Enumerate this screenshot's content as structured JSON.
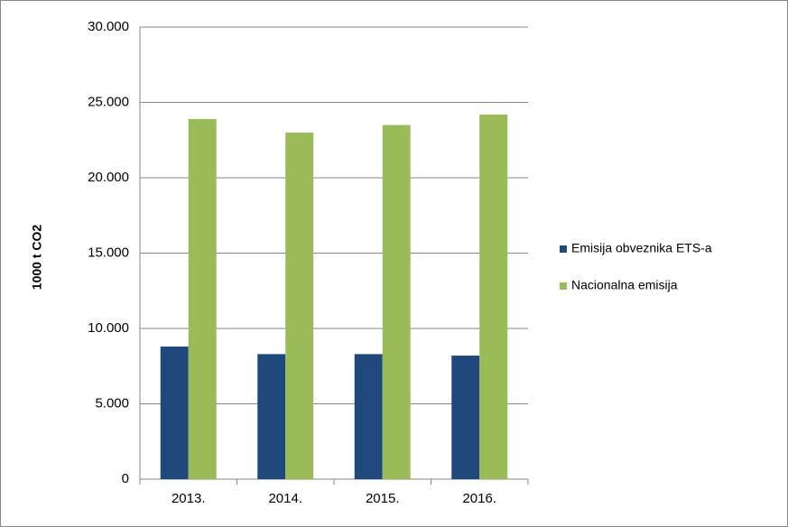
{
  "chart_data": {
    "type": "bar",
    "y_label": "1000 t CO2",
    "categories": [
      "2013.",
      "2014.",
      "2015.",
      "2016."
    ],
    "series": [
      {
        "name": "Emisija obveznika ETS-a",
        "color": "#1f497d",
        "values": [
          8800,
          8300,
          8300,
          8200
        ]
      },
      {
        "name": "Nacionalna emisija",
        "color": "#9bbb59",
        "values": [
          23900,
          23000,
          23500,
          24200
        ]
      }
    ],
    "ylim": [
      0,
      30000
    ],
    "yticks": [
      0,
      {
        "value": 5000,
        "label": "5.000"
      },
      {
        "value": 10000,
        "label": "10.000"
      },
      {
        "value": 15000,
        "label": "15.000"
      },
      {
        "value": 20000,
        "label": "20.000"
      },
      {
        "value": 25000,
        "label": "25.000"
      },
      {
        "value": 30000,
        "label": "30.000"
      }
    ],
    "grid": true,
    "legend": "right"
  }
}
